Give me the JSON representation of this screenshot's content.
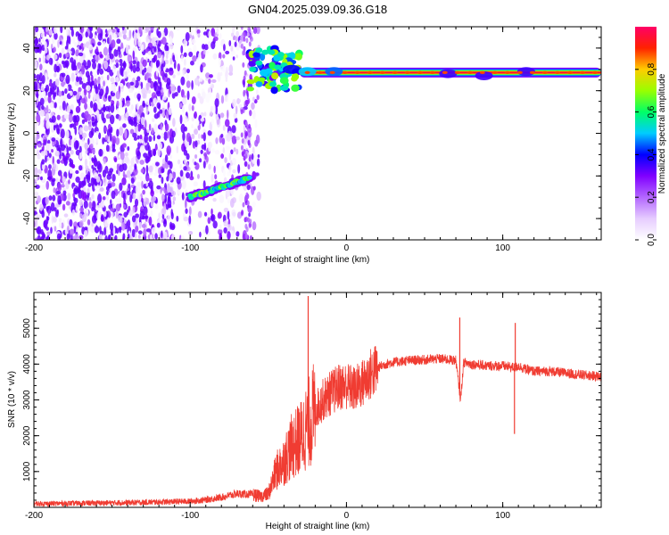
{
  "figure_title": "GN04.2025.039.09.36.G18",
  "chart_data": [
    {
      "type": "heatmap",
      "title": "",
      "xlabel": "Height of straight line (km)",
      "ylabel": "Frequency (Hz)",
      "xlim": [
        -200,
        163
      ],
      "ylim": [
        -50,
        50
      ],
      "x_ticks": [
        -200,
        -100,
        0,
        100
      ],
      "y_ticks": [
        -40,
        -20,
        0,
        20,
        40
      ],
      "colorbar": {
        "label": "Normalized spectral amplitude",
        "range": [
          0,
          1
        ],
        "ticks": [
          0.0,
          0.2,
          0.4,
          0.6,
          0.8
        ],
        "tick_labels": [
          "0.0",
          "0.2",
          "0.4",
          "0.6",
          "0.8"
        ],
        "colormap": [
          "#ffffff",
          "#e6ccff",
          "#b366ff",
          "#8000ff",
          "#0000ff",
          "#00ccff",
          "#00ff66",
          "#99ff00",
          "#ffcc00",
          "#ff2200",
          "#ff0066"
        ]
      },
      "features": [
        {
          "segment": "noise",
          "x_range": [
            -200,
            -62
          ],
          "freq_range": [
            -50,
            50
          ],
          "amplitude": 0.35
        },
        {
          "segment": "early-branch",
          "x_start": -100,
          "x_end": -62,
          "freq_start": -30,
          "freq_end": -21
        },
        {
          "segment": "transition-cluster",
          "x_range": [
            -62,
            -30
          ],
          "freq_range": [
            20,
            40
          ]
        },
        {
          "segment": "main-track",
          "x_start": -30,
          "x_end": 163,
          "freq": 28.5
        }
      ]
    },
    {
      "type": "line",
      "title": "",
      "xlabel": "Height of straight line (km)",
      "ylabel": "SNR (10 * v/v)",
      "xlim": [
        -200,
        163
      ],
      "ylim": [
        0,
        6000
      ],
      "x_ticks": [
        -200,
        -100,
        0,
        100
      ],
      "y_ticks": [
        1000,
        2000,
        3000,
        4000,
        5000
      ],
      "color": "#f03c32",
      "x": [
        -200,
        -180,
        -160,
        -140,
        -120,
        -100,
        -90,
        -80,
        -70,
        -60,
        -55,
        -50,
        -45,
        -40,
        -35,
        -30,
        -25,
        -20,
        -15,
        -10,
        -5,
        0,
        5,
        10,
        15,
        20,
        25,
        30,
        40,
        50,
        60,
        70,
        73,
        75,
        80,
        90,
        100,
        108,
        110,
        115,
        120,
        130,
        140,
        150,
        163
      ],
      "values": [
        100,
        110,
        120,
        130,
        150,
        170,
        210,
        280,
        380,
        360,
        300,
        380,
        1000,
        1300,
        1700,
        1900,
        2300,
        2700,
        3000,
        3200,
        3350,
        3400,
        3300,
        3450,
        3700,
        3900,
        4000,
        4050,
        4100,
        4120,
        4150,
        4100,
        3000,
        4050,
        4000,
        3950,
        3950,
        3900,
        3950,
        3850,
        3800,
        3800,
        3750,
        3700,
        3650
      ],
      "spikes": [
        {
          "x": -24.5,
          "peak": 5900
        },
        {
          "x": 72.5,
          "peak": 5300
        },
        {
          "x": 108,
          "peak": 5150
        },
        {
          "x": 107.5,
          "dip": 2050
        }
      ]
    }
  ]
}
